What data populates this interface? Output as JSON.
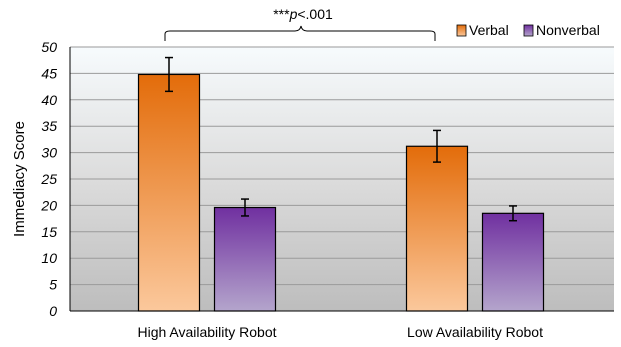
{
  "chart_data": {
    "type": "bar",
    "categories": [
      "High Availability Robot",
      "Low Availability Robot"
    ],
    "series": [
      {
        "name": "Verbal",
        "values": [
          44.8,
          31.2
        ],
        "errors": [
          3.2,
          3.0
        ],
        "color": "#E36C0A",
        "color_light": "#FBC89C"
      },
      {
        "name": "Nonverbal",
        "values": [
          19.6,
          18.5
        ],
        "errors": [
          1.6,
          1.4
        ],
        "color": "#7030A0",
        "color_light": "#B4A5CC"
      }
    ],
    "ylabel": "Immediacy Score",
    "ylim": [
      0,
      50
    ],
    "yticks": [
      0,
      5,
      10,
      15,
      20,
      25,
      30,
      35,
      40,
      45,
      50
    ],
    "grid": true,
    "legend_position": "top-right",
    "annotation": {
      "stars": "***",
      "p": "p",
      "rest": "<.001"
    }
  }
}
